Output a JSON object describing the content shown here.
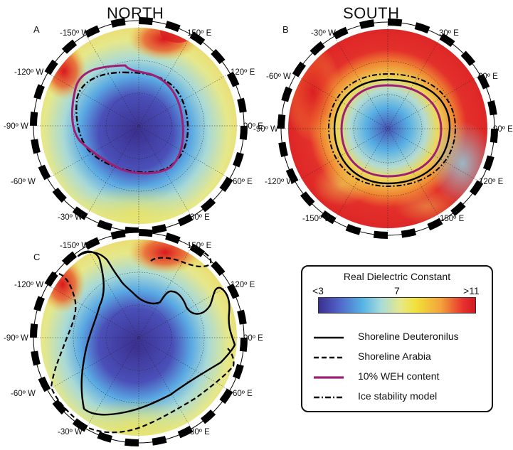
{
  "headers": {
    "north": "NORTH",
    "south": "SOUTH"
  },
  "panels": [
    {
      "id": "A",
      "label": "A",
      "labels": [
        "-150º W",
        "150º E",
        "-120º W",
        "120º E",
        "-90º W",
        "90º E",
        "-60º W",
        "60º E",
        "-30º W",
        "30º E"
      ]
    },
    {
      "id": "B",
      "label": "B",
      "labels": [
        "-30º W",
        "30º E",
        "-60º W",
        "60º E",
        "-90º W",
        "90º E",
        "-120º W",
        "120º E",
        "-150º W",
        "150º E"
      ]
    },
    {
      "id": "C",
      "label": "C",
      "labels": [
        "-150º W",
        "150º E",
        "-120º W",
        "120º E",
        "-90º W",
        "90º E",
        "-60º W",
        "60º E",
        "-30º W",
        "30º E"
      ]
    }
  ],
  "legend": {
    "title": "Real Dielectric Constant",
    "tick_low": "<3",
    "tick_mid": "7",
    "tick_high": ">11",
    "items": [
      {
        "label": "Shoreline Deuteronilus",
        "style": "solid",
        "color": "#000000"
      },
      {
        "label": "Shoreline Arabia",
        "style": "dashed",
        "color": "#000000"
      },
      {
        "label": "10%  WEH content",
        "style": "solid",
        "color": "#9e1f74"
      },
      {
        "label": "Ice stability model",
        "style": "dashdot",
        "color": "#000000"
      }
    ]
  },
  "colors": {
    "low": "#3b2f8f",
    "mid_low": "#56b4e6",
    "mid": "#e5e88a",
    "mid_high": "#f2a33a",
    "high": "#d11a20",
    "weh": "#9e1f74"
  }
}
